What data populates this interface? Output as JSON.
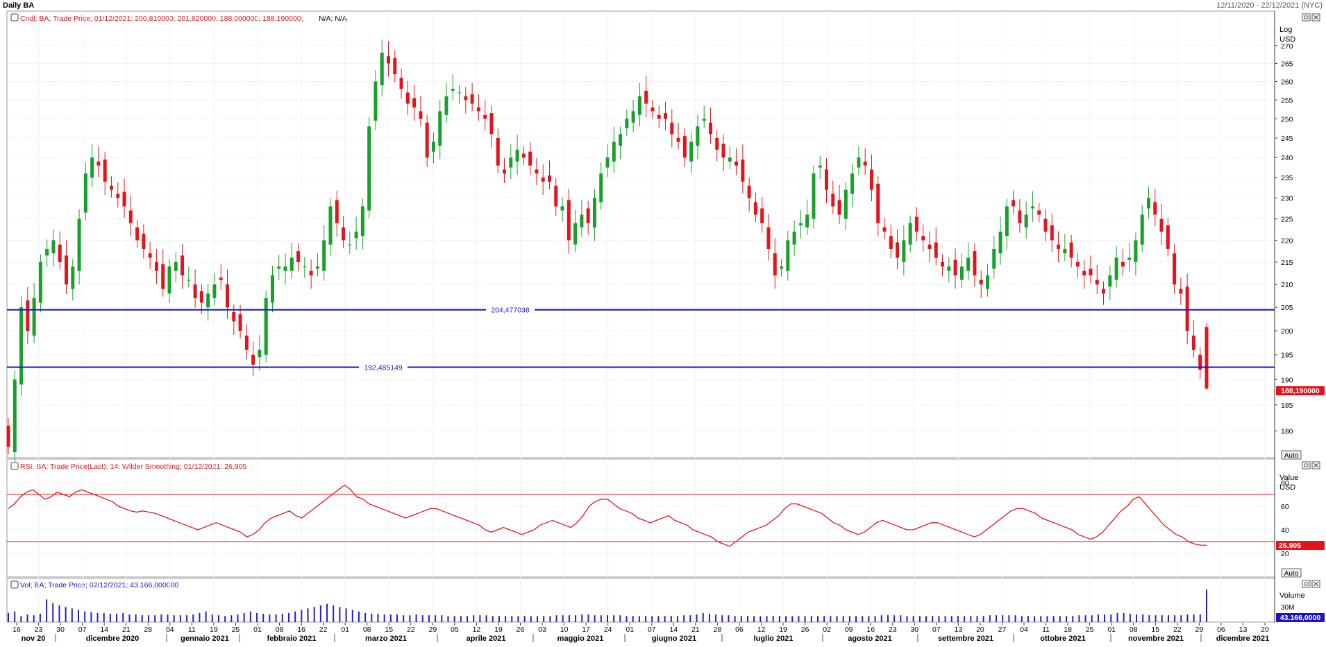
{
  "header": {
    "title": "Daily BA",
    "date_range": "12/11/2020 - 22/12/2021 (NYC)"
  },
  "colors": {
    "up": "#17a02a",
    "down": "#e3141c",
    "hline": "#1c12c8",
    "rsi": "#e3141c",
    "volume": "#2020c8",
    "label_red": "#e3141c",
    "label_blue": "#1c12c8",
    "grid": "#e6e6e6",
    "frame": "#9a9a9a"
  },
  "panels": {
    "price": {
      "legend_prefix": "Cndl; BA; Trade Price; 01/12/2021; 200,810000; 201,620000; 188,000000; 188,190000;",
      "legend_suffix": " N/A; N/A",
      "axis_title_1": "Log",
      "axis_title_2": "USD",
      "auto_label": "Auto",
      "last_price_label": "188,190000"
    },
    "rsi": {
      "legend": "RSI; BA; Trade Price(Last);  14; Wilder Smoothing; 01/12/2021; 26,905",
      "axis_title_1": "Value",
      "axis_title_2": "USD",
      "auto_label": "Auto",
      "last_value_label": "26,905"
    },
    "volume": {
      "legend": "Vol; BA; Trade Price; 02/12/2021; 43.166,000000",
      "axis_title": "Volume",
      "tick_label": "30M",
      "last_value_label": "43.166,0000"
    }
  },
  "x_axis": {
    "day_ticks": [
      "16",
      "23",
      "30",
      "07",
      "14",
      "21",
      "28",
      "04",
      "11",
      "19",
      "25",
      "01",
      "08",
      "16",
      "22",
      "01",
      "08",
      "15",
      "22",
      "29",
      "05",
      "12",
      "19",
      "26",
      "03",
      "10",
      "17",
      "24",
      "01",
      "07",
      "14",
      "21",
      "28",
      "06",
      "12",
      "19",
      "26",
      "02",
      "09",
      "16",
      "23",
      "30",
      "07",
      "13",
      "20",
      "27",
      "04",
      "11",
      "18",
      "25",
      "01",
      "08",
      "15",
      "22",
      "29",
      "06",
      "13",
      "20"
    ],
    "month_labels": [
      "nov 20",
      "dicembre 2020",
      "gennaio 2021",
      "febbraio 2021",
      "marzo 2021",
      "aprile 2021",
      "maggio 2021",
      "giugno 2021",
      "luglio 2021",
      "agosto 2021",
      "settembre 2021",
      "ottobre 2021",
      "novembre 2021",
      "dicembre 2021"
    ]
  },
  "chart_data": [
    {
      "type": "candlestick",
      "title": "Daily BA",
      "y_scale": "log",
      "ylabel": "USD",
      "y_ticks": [
        180,
        185,
        190,
        195,
        200,
        205,
        210,
        215,
        220,
        225,
        230,
        235,
        240,
        245,
        250,
        255,
        260,
        265,
        270
      ],
      "ylim": [
        175,
        280
      ],
      "date_range": [
        "12/11/2020",
        "22/12/2021"
      ],
      "horizontal_lines": [
        204.477038,
        192.485149
      ],
      "last": {
        "date": "01/12/2021",
        "open": 200.81,
        "high": 201.62,
        "low": 188.0,
        "close": 188.19
      },
      "closes": [
        177,
        190,
        205,
        200,
        207,
        215,
        218,
        220,
        215,
        210,
        214,
        225,
        236,
        240,
        238,
        234,
        232,
        230,
        228,
        224,
        220,
        218,
        216,
        213,
        209,
        214,
        215,
        212,
        211,
        207,
        206,
        208,
        210,
        211,
        205,
        202,
        200,
        196,
        193,
        196,
        207,
        212,
        214,
        214,
        216,
        215,
        214,
        212,
        214,
        220,
        228,
        224,
        220,
        219,
        222,
        228,
        248,
        260,
        268,
        265,
        262,
        258,
        254,
        253,
        250,
        240,
        244,
        252,
        256,
        258,
        257,
        255,
        254,
        252,
        250,
        246,
        238,
        236,
        240,
        242,
        240,
        238,
        236,
        234,
        234,
        228,
        228,
        220,
        224,
        226,
        224,
        230,
        236,
        240,
        244,
        246,
        250,
        252,
        256,
        254,
        252,
        250,
        250,
        246,
        244,
        240,
        244,
        248,
        250,
        246,
        242,
        240,
        240,
        238,
        234,
        230,
        226,
        224,
        218,
        212,
        214,
        220,
        222,
        224,
        226,
        236,
        238,
        232,
        228,
        226,
        232,
        236,
        240,
        238,
        232,
        224,
        222,
        218,
        216,
        220,
        224,
        222,
        220,
        218,
        216,
        214,
        214,
        212,
        214,
        216,
        212,
        210,
        212,
        218,
        222,
        228,
        228,
        224,
        226,
        228,
        226,
        222,
        220,
        218,
        218,
        216,
        214,
        212,
        212,
        210,
        208,
        212,
        216,
        214,
        216,
        220,
        226,
        230,
        226,
        222,
        218,
        210,
        208,
        200,
        196,
        192,
        188.19
      ],
      "volumes_M": [
        12,
        14,
        8,
        10,
        9,
        11,
        30,
        25,
        22,
        20,
        18,
        16,
        14,
        13,
        12,
        12,
        11,
        11,
        12,
        10,
        10,
        9,
        9,
        9,
        10,
        10,
        9,
        9,
        9,
        10,
        12,
        14,
        10,
        9,
        8,
        9,
        10,
        12,
        14,
        12,
        11,
        10,
        10,
        11,
        12,
        14,
        16,
        18,
        20,
        22,
        24,
        22,
        20,
        18,
        16,
        14,
        12,
        11,
        11,
        10,
        10,
        10,
        9,
        9,
        10,
        9,
        9,
        9,
        9,
        8,
        8,
        8,
        8,
        9,
        9,
        9,
        8,
        8,
        8,
        8,
        8,
        8,
        8,
        8,
        8,
        8,
        9,
        9,
        9,
        9,
        10,
        10,
        9,
        9,
        9,
        9,
        9,
        8,
        8,
        8,
        8,
        8,
        8,
        8,
        8,
        8,
        9,
        9,
        10,
        12,
        11,
        10,
        9,
        9,
        8,
        8,
        8,
        8,
        8,
        8,
        8,
        8,
        8,
        8,
        8,
        8,
        8,
        8,
        8,
        8,
        8,
        8,
        8,
        8,
        8,
        8,
        8,
        9,
        9,
        9,
        9,
        8,
        8,
        8,
        8,
        8,
        8,
        8,
        8,
        8,
        8,
        8,
        8,
        8,
        9,
        9,
        9,
        9,
        9,
        8,
        8,
        8,
        8,
        8,
        8,
        8,
        8,
        8,
        9,
        9,
        9,
        10,
        10,
        10,
        12,
        12,
        11,
        10,
        10,
        9,
        9,
        9,
        9,
        9,
        9,
        10,
        10,
        10,
        43
      ]
    },
    {
      "type": "line",
      "title": "RSI; BA; Trade Price(Last);  14; Wilder Smoothing",
      "ylabel": "USD",
      "y_ticks": [
        20,
        40,
        60,
        80
      ],
      "ylim": [
        0,
        100
      ],
      "horizontal_lines": [
        70,
        30
      ],
      "last_value": 26.905,
      "series": [
        {
          "values": [
            58,
            62,
            68,
            72,
            74,
            70,
            66,
            68,
            72,
            70,
            68,
            72,
            74,
            72,
            70,
            68,
            66,
            64,
            60,
            58,
            56,
            55,
            56,
            55,
            54,
            52,
            50,
            48,
            46,
            44,
            42,
            40,
            42,
            44,
            46,
            44,
            42,
            40,
            38,
            34,
            36,
            40,
            46,
            50,
            52,
            54,
            56,
            52,
            50,
            54,
            58,
            62,
            66,
            70,
            74,
            78,
            74,
            68,
            66,
            62,
            60,
            58,
            56,
            54,
            52,
            50,
            52,
            54,
            56,
            58,
            58,
            56,
            54,
            52,
            50,
            48,
            46,
            44,
            40,
            38,
            40,
            42,
            40,
            38,
            36,
            38,
            40,
            44,
            46,
            48,
            46,
            44,
            42,
            46,
            52,
            60,
            64,
            66,
            66,
            62,
            58,
            56,
            54,
            50,
            48,
            46,
            48,
            50,
            52,
            48,
            46,
            44,
            40,
            38,
            36,
            34,
            30,
            28,
            26,
            30,
            34,
            38,
            40,
            42,
            44,
            48,
            52,
            58,
            62,
            62,
            60,
            58,
            56,
            54,
            50,
            46,
            44,
            40,
            38,
            36,
            38,
            42,
            46,
            48,
            46,
            44,
            42,
            40,
            40,
            42,
            44,
            46,
            46,
            44,
            42,
            40,
            38,
            36,
            34,
            36,
            40,
            44,
            48,
            52,
            56,
            58,
            58,
            56,
            54,
            50,
            48,
            46,
            44,
            42,
            40,
            36,
            34,
            32,
            34,
            38,
            44,
            50,
            56,
            60,
            66,
            68,
            62,
            56,
            50,
            44,
            40,
            36,
            34,
            30,
            28,
            27,
            26.905
          ]
        }
      ]
    }
  ]
}
